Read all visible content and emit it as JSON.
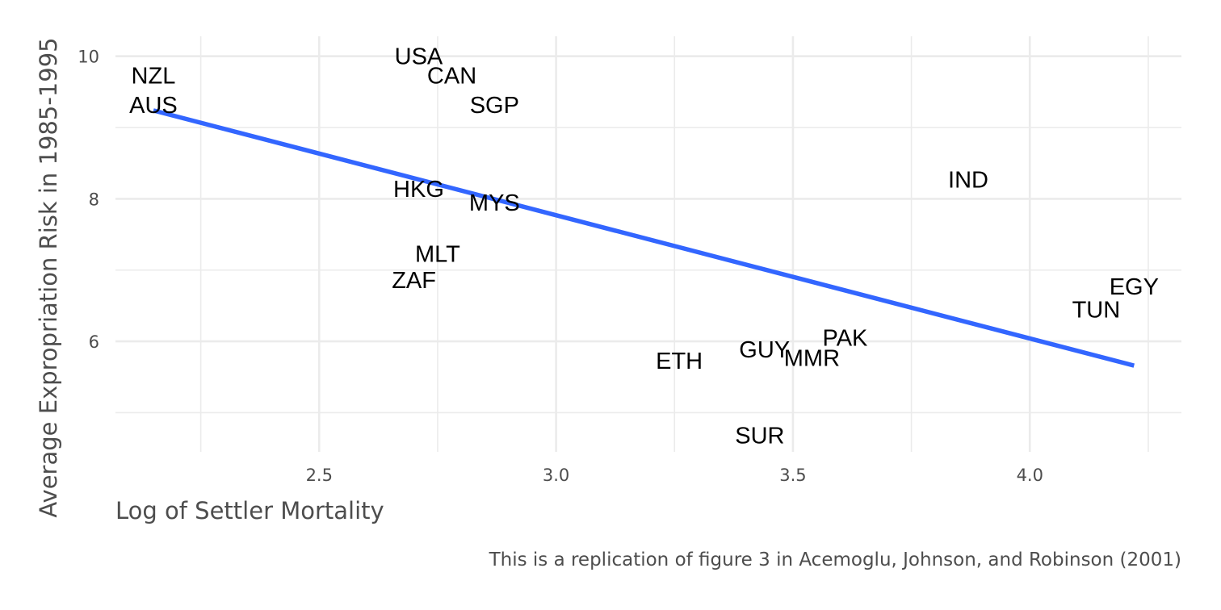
{
  "chart_data": {
    "type": "scatter",
    "xlabel": "Log of Settler Mortality",
    "ylabel": "Average Expropriation Risk in 1985-1995",
    "caption": "This is a replication of figure 3 in Acemoglu, Johnson, and Robinson (2001)",
    "xlim": [
      2.07,
      4.32
    ],
    "ylim": [
      4.45,
      10.28
    ],
    "x_ticks": [
      2.5,
      3.0,
      3.5,
      4.0
    ],
    "x_tick_labels": [
      "2.5",
      "3.0",
      "3.5",
      "4.0"
    ],
    "y_ticks": [
      6,
      8,
      10
    ],
    "y_tick_labels": [
      "6",
      "8",
      "10"
    ],
    "grid": true,
    "points": [
      {
        "label": "NZL",
        "x": 2.15,
        "y": 9.73
      },
      {
        "label": "AUS",
        "x": 2.15,
        "y": 9.32
      },
      {
        "label": "USA",
        "x": 2.71,
        "y": 10.0
      },
      {
        "label": "CAN",
        "x": 2.78,
        "y": 9.73
      },
      {
        "label": "SGP",
        "x": 2.87,
        "y": 9.32
      },
      {
        "label": "HKG",
        "x": 2.71,
        "y": 8.14
      },
      {
        "label": "MYS",
        "x": 2.87,
        "y": 7.95
      },
      {
        "label": "MLT",
        "x": 2.75,
        "y": 7.23
      },
      {
        "label": "ZAF",
        "x": 2.7,
        "y": 6.86
      },
      {
        "label": "IND",
        "x": 3.87,
        "y": 8.27
      },
      {
        "label": "EGY",
        "x": 4.22,
        "y": 6.77
      },
      {
        "label": "TUN",
        "x": 4.14,
        "y": 6.45
      },
      {
        "label": "PAK",
        "x": 3.61,
        "y": 6.05
      },
      {
        "label": "GUY",
        "x": 3.44,
        "y": 5.89
      },
      {
        "label": "MMR",
        "x": 3.54,
        "y": 5.77
      },
      {
        "label": "ETH",
        "x": 3.26,
        "y": 5.73
      },
      {
        "label": "SUR",
        "x": 3.43,
        "y": 4.68
      }
    ],
    "fit_line": {
      "x": [
        2.15,
        4.22
      ],
      "y": [
        9.24,
        5.66
      ],
      "color": "#3366ff"
    }
  }
}
